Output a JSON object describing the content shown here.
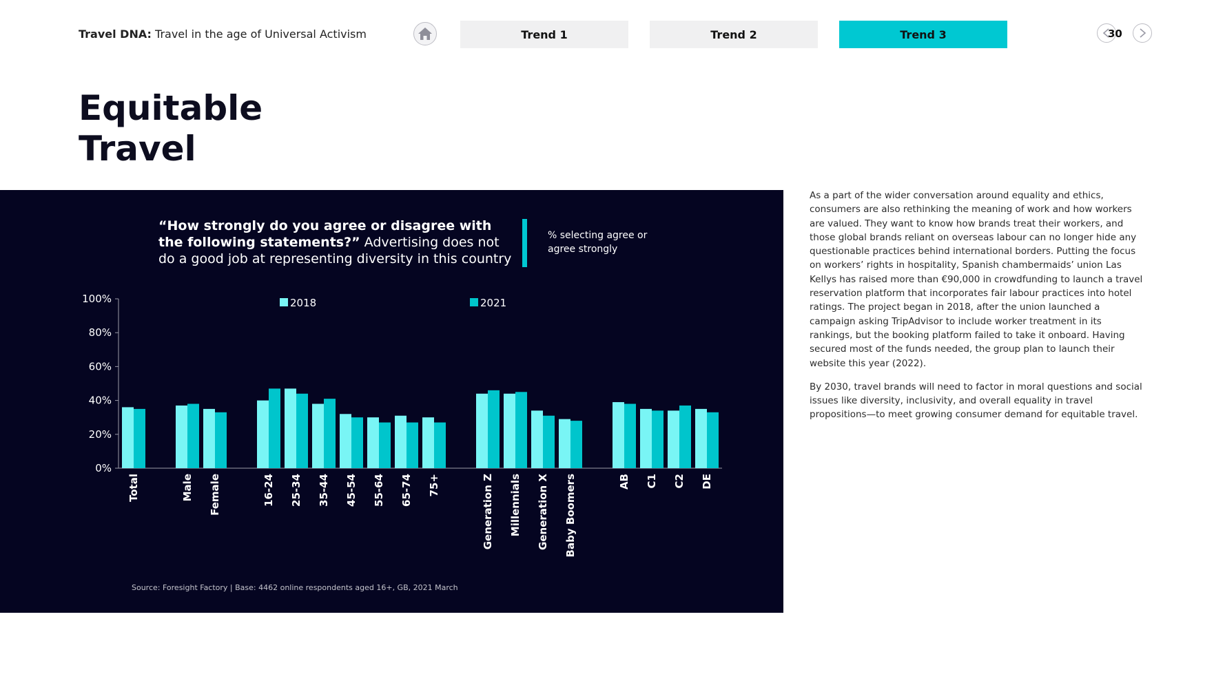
{
  "header": {
    "brand_label": "Travel DNA:",
    "subtitle": "Travel in the age of Universal Activism"
  },
  "nav": {
    "home_icon": "home-icon",
    "tabs": [
      {
        "label": "Trend 1",
        "active": false
      },
      {
        "label": "Trend 2",
        "active": false
      },
      {
        "label": "Trend 3",
        "active": true
      }
    ],
    "page_number": "30",
    "prev_icon": "chevron-left-icon",
    "next_icon": "chevron-right-icon"
  },
  "page_title": "Equitable Travel",
  "chart_panel": {
    "question_bold": "“How strongly do you agree or disagree with the following statements?”",
    "question_rest": "Advertising does not do a good job at representing diversity in this country",
    "metric_note": "% selecting agree or agree strongly",
    "source": "Source: Foresight Factory | Base: 4462 online respondents aged 16+, GB, 2021 March"
  },
  "chart_data": {
    "type": "bar",
    "colors": {
      "2018": "#79f5f5",
      "2021": "#00c5cc",
      "axis": "#9a9aa8",
      "text": "#ffffff",
      "background": "#050521"
    },
    "categories": [
      "Total",
      "Male",
      "Female",
      "16-24",
      "25-34",
      "35-44",
      "45-54",
      "55-64",
      "65-74",
      "75+",
      "Generation Z",
      "Millennials",
      "Generation X",
      "Baby Boomers",
      "AB",
      "C1",
      "C2",
      "DE"
    ],
    "groups": [
      {
        "categories": [
          "Total"
        ]
      },
      {
        "categories": [
          "Male",
          "Female"
        ]
      },
      {
        "categories": [
          "16-24",
          "25-34",
          "35-44",
          "45-54",
          "55-64",
          "65-74",
          "75+"
        ]
      },
      {
        "categories": [
          "Generation Z",
          "Millennials",
          "Generation X",
          "Baby Boomers"
        ]
      },
      {
        "categories": [
          "AB",
          "C1",
          "C2",
          "DE"
        ]
      }
    ],
    "series": [
      {
        "name": "2018",
        "values": [
          36,
          37,
          35,
          40,
          47,
          38,
          32,
          30,
          31,
          30,
          44,
          44,
          34,
          29,
          39,
          35,
          34,
          35
        ]
      },
      {
        "name": "2021",
        "values": [
          35,
          38,
          33,
          47,
          44,
          41,
          30,
          27,
          27,
          27,
          46,
          45,
          31,
          28,
          38,
          34,
          37,
          33
        ]
      }
    ],
    "ylim": [
      0,
      100
    ],
    "yticks": [
      0,
      20,
      40,
      60,
      80,
      100
    ],
    "ytick_labels": [
      "0%",
      "20%",
      "40%",
      "60%",
      "80%",
      "100%"
    ],
    "legend": [
      "2018",
      "2021"
    ],
    "legend_position": "top",
    "grid": false
  },
  "body": {
    "paragraph_1": "As a part of the wider conversation around equality and ethics, consumers are also rethinking the meaning of work and how workers are valued. They want to know how brands treat their workers, and those global brands reliant on overseas labour can no longer hide any questionable practices behind international borders. Putting the focus on workers’ rights in hospitality, Spanish chambermaids’ union Las Kellys has raised more than €90,000 in crowdfunding to launch a travel reservation platform that incorporates fair labour practices into hotel ratings. The project began in 2018, after the union launched a campaign asking TripAdvisor to include worker treatment in its rankings, but the booking platform failed to take it onboard. Having secured most of the funds needed, the group plan to launch their website this year (2022).",
    "paragraph_2": "By 2030, travel brands will need to factor in moral questions and social issues like diversity, inclusivity, and overall equality in travel propositions—to meet growing consumer demand for equitable travel."
  }
}
